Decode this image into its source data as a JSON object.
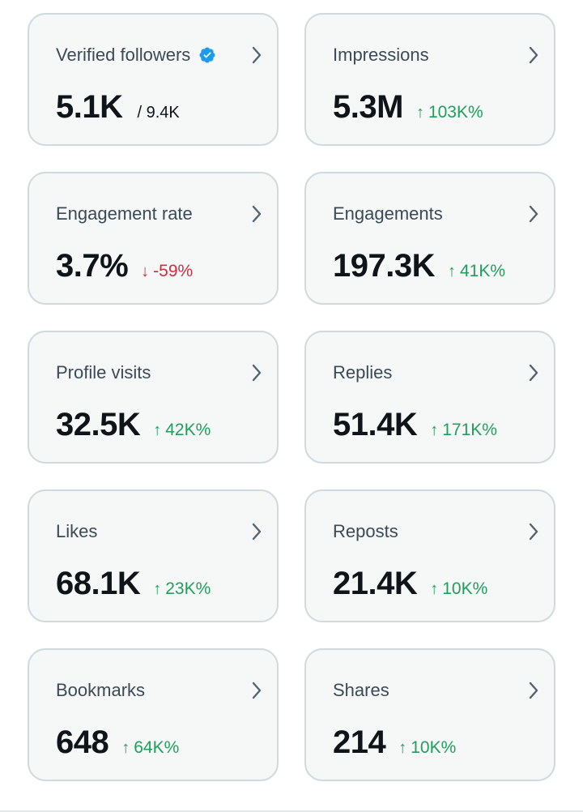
{
  "colors": {
    "card_bg": "#f6f7f7",
    "card_border": "#cfd9de",
    "up": "#1f9f5c",
    "down": "#d22b3c",
    "verified": "#1d9bf0"
  },
  "cards": [
    {
      "title": "Verified followers",
      "value": "5.1K",
      "sub": "/ 9.4K",
      "verified": true
    },
    {
      "title": "Impressions",
      "value": "5.3M",
      "change": "103K%",
      "direction": "up"
    },
    {
      "title": "Engagement rate",
      "value": "3.7%",
      "change": "-59%",
      "direction": "down"
    },
    {
      "title": "Engagements",
      "value": "197.3K",
      "change": "41K%",
      "direction": "up"
    },
    {
      "title": "Profile visits",
      "value": "32.5K",
      "change": "42K%",
      "direction": "up"
    },
    {
      "title": "Replies",
      "value": "51.4K",
      "change": "171K%",
      "direction": "up"
    },
    {
      "title": "Likes",
      "value": "68.1K",
      "change": "23K%",
      "direction": "up"
    },
    {
      "title": "Reposts",
      "value": "21.4K",
      "change": "10K%",
      "direction": "up"
    },
    {
      "title": "Bookmarks",
      "value": "648",
      "change": "64K%",
      "direction": "up"
    },
    {
      "title": "Shares",
      "value": "214",
      "change": "10K%",
      "direction": "up"
    }
  ]
}
